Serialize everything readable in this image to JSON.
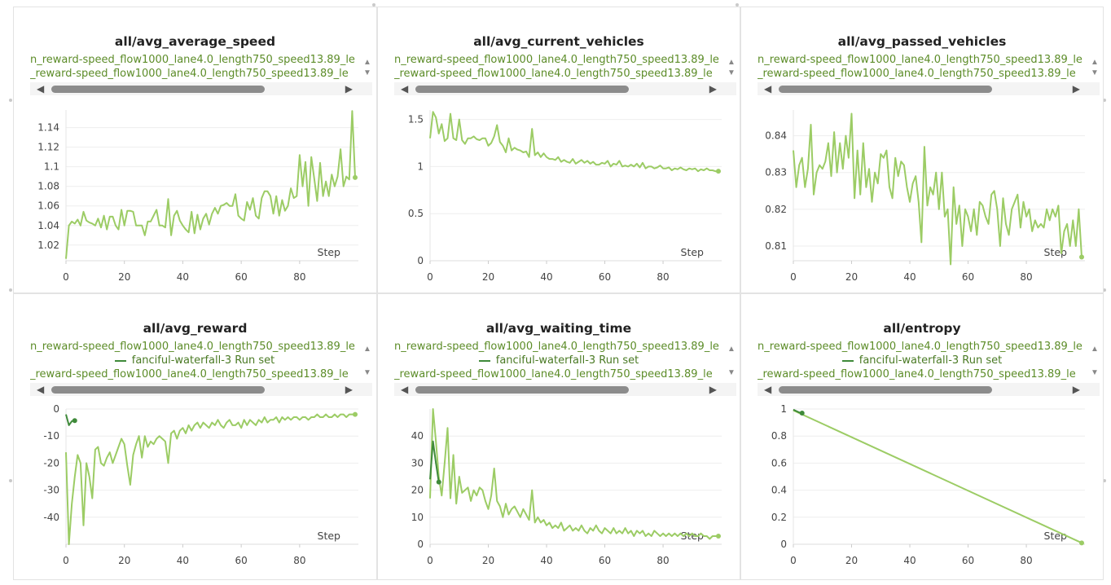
{
  "legend": {
    "run_a": "n_reward-speed_flow1000_lane4.0_length750_speed13.89_le",
    "run_b": "fanciful-waterfall-3 Run set",
    "run_c": "_reward-speed_flow1000_lane4.0_length750_speed13.89_le"
  },
  "icons": {
    "up": "▲",
    "down": "▼",
    "left": "◀",
    "right": "▶"
  },
  "colors": {
    "series_main": "#9ccc65",
    "series_secondary": "#3f8a3a",
    "legend_text": "#5c8c28"
  },
  "chart_data": [
    {
      "type": "line",
      "title": "all/avg_average_speed",
      "xlabel": "Step",
      "xlim": [
        0,
        99
      ],
      "ylim": [
        1.004,
        1.158
      ],
      "xticks": [
        0,
        20,
        40,
        60,
        80
      ],
      "yticks": [
        1.02,
        1.04,
        1.06,
        1.08,
        1.1,
        1.12,
        1.14
      ],
      "yticklabels": [
        "1.02",
        "1.04",
        "1.06",
        "1.08",
        "1.1",
        "1.12",
        "1.14"
      ],
      "show_run_b": false,
      "series": [
        {
          "values": [
            1.006,
            1.04,
            1.044,
            1.042,
            1.046,
            1.04,
            1.054,
            1.045,
            1.043,
            1.042,
            1.04,
            1.047,
            1.038,
            1.05,
            1.036,
            1.049,
            1.049,
            1.04,
            1.036,
            1.056,
            1.04,
            1.055,
            1.055,
            1.054,
            1.04,
            1.04,
            1.04,
            1.03,
            1.044,
            1.044,
            1.05,
            1.056,
            1.04,
            1.04,
            1.038,
            1.067,
            1.03,
            1.05,
            1.055,
            1.045,
            1.04,
            1.036,
            1.033,
            1.054,
            1.032,
            1.051,
            1.036,
            1.047,
            1.052,
            1.041,
            1.052,
            1.058,
            1.052,
            1.06,
            1.061,
            1.063,
            1.06,
            1.06,
            1.072,
            1.05,
            1.047,
            1.045,
            1.064,
            1.056,
            1.068,
            1.05,
            1.047,
            1.068,
            1.075,
            1.075,
            1.07,
            1.052,
            1.07,
            1.05,
            1.066,
            1.055,
            1.06,
            1.078,
            1.068,
            1.07,
            1.112,
            1.08,
            1.105,
            1.06,
            1.11,
            1.088,
            1.065,
            1.104,
            1.07,
            1.085,
            1.07,
            1.092,
            1.08,
            1.09,
            1.118,
            1.08,
            1.09,
            1.087,
            1.157,
            1.089
          ],
          "end_marker": true
        }
      ]
    },
    {
      "type": "line",
      "title": "all/avg_current_vehicles",
      "xlabel": "Step",
      "xlim": [
        0,
        99
      ],
      "ylim": [
        0,
        1.6
      ],
      "xticks": [
        0,
        20,
        40,
        60,
        80
      ],
      "yticks": [
        0,
        0.5,
        1,
        1.5
      ],
      "yticklabels": [
        "0",
        "0.5",
        "1",
        "1.5"
      ],
      "show_run_b": false,
      "series": [
        {
          "values": [
            1.3,
            1.58,
            1.52,
            1.35,
            1.45,
            1.27,
            1.3,
            1.56,
            1.3,
            1.28,
            1.5,
            1.28,
            1.24,
            1.3,
            1.3,
            1.32,
            1.29,
            1.28,
            1.3,
            1.3,
            1.22,
            1.25,
            1.32,
            1.44,
            1.26,
            1.22,
            1.15,
            1.3,
            1.17,
            1.2,
            1.18,
            1.17,
            1.15,
            1.16,
            1.1,
            1.4,
            1.12,
            1.15,
            1.1,
            1.14,
            1.1,
            1.08,
            1.08,
            1.07,
            1.1,
            1.05,
            1.07,
            1.05,
            1.04,
            1.08,
            1.03,
            1.05,
            1.07,
            1.04,
            1.06,
            1.03,
            1.05,
            1.02,
            1.02,
            1.04,
            1.03,
            1.06,
            1.0,
            1.03,
            1.02,
            1.06,
            1.0,
            1.01,
            1.0,
            1.02,
            1.0,
            1.03,
            0.99,
            1.04,
            0.98,
            1.0,
            1.0,
            0.98,
            0.99,
            1.01,
            0.98,
            0.98,
            0.99,
            0.96,
            0.98,
            0.97,
            0.99,
            0.97,
            0.96,
            0.98,
            0.97,
            0.98,
            0.95,
            0.97,
            0.96,
            0.98,
            0.96,
            0.96,
            0.95,
            0.95
          ],
          "end_marker": true
        }
      ]
    },
    {
      "type": "line",
      "title": "all/avg_passed_vehicles",
      "xlabel": "Step",
      "xlim": [
        0,
        99
      ],
      "ylim": [
        0.806,
        0.847
      ],
      "xticks": [
        0,
        20,
        40,
        60,
        80
      ],
      "yticks": [
        0.81,
        0.82,
        0.83,
        0.84
      ],
      "yticklabels": [
        "0.81",
        "0.82",
        "0.83",
        "0.84"
      ],
      "show_run_b": false,
      "series": [
        {
          "values": [
            0.836,
            0.826,
            0.832,
            0.834,
            0.826,
            0.831,
            0.843,
            0.824,
            0.83,
            0.832,
            0.831,
            0.833,
            0.838,
            0.829,
            0.841,
            0.83,
            0.838,
            0.831,
            0.84,
            0.834,
            0.846,
            0.823,
            0.836,
            0.824,
            0.838,
            0.826,
            0.831,
            0.822,
            0.83,
            0.827,
            0.835,
            0.834,
            0.836,
            0.826,
            0.823,
            0.834,
            0.829,
            0.833,
            0.832,
            0.826,
            0.822,
            0.827,
            0.829,
            0.822,
            0.811,
            0.837,
            0.821,
            0.826,
            0.824,
            0.83,
            0.82,
            0.83,
            0.818,
            0.82,
            0.805,
            0.826,
            0.816,
            0.821,
            0.81,
            0.82,
            0.818,
            0.814,
            0.82,
            0.813,
            0.822,
            0.821,
            0.818,
            0.816,
            0.824,
            0.825,
            0.82,
            0.81,
            0.823,
            0.816,
            0.813,
            0.82,
            0.822,
            0.824,
            0.815,
            0.822,
            0.818,
            0.82,
            0.814,
            0.817,
            0.815,
            0.816,
            0.815,
            0.82,
            0.817,
            0.82,
            0.818,
            0.821,
            0.808,
            0.814,
            0.816,
            0.81,
            0.817,
            0.81,
            0.82,
            0.807
          ],
          "end_marker": true
        }
      ]
    },
    {
      "type": "line",
      "title": "all/avg_reward",
      "xlabel": "Step",
      "xlim": [
        0,
        99
      ],
      "ylim": [
        -50,
        0
      ],
      "xticks": [
        0,
        20,
        40,
        60,
        80
      ],
      "yticks": [
        0,
        -10,
        -20,
        -30,
        -40
      ],
      "yticklabels": [
        "0",
        "-10",
        "-20",
        "-30",
        "-40"
      ],
      "show_run_b": true,
      "series": [
        {
          "values": [
            -16,
            -50,
            -35,
            -25,
            -17,
            -20,
            -43,
            -20,
            -25,
            -33,
            -15,
            -14,
            -20,
            -21,
            -18,
            -16,
            -20,
            -17,
            -14,
            -11,
            -13,
            -21,
            -28,
            -17,
            -13,
            -10,
            -18,
            -10,
            -14,
            -12,
            -13,
            -11,
            -10,
            -11,
            -12,
            -20,
            -9,
            -8,
            -11,
            -8,
            -7,
            -9,
            -6,
            -8,
            -6,
            -5,
            -7,
            -5,
            -6,
            -7,
            -5,
            -6,
            -4,
            -6,
            -7,
            -5,
            -4,
            -6,
            -6,
            -5,
            -7,
            -4,
            -6,
            -4,
            -5,
            -6,
            -4,
            -5,
            -3,
            -5,
            -4,
            -4,
            -3,
            -5,
            -3,
            -4,
            -3,
            -4,
            -3,
            -3,
            -4,
            -3,
            -3,
            -4,
            -3,
            -3,
            -2,
            -3,
            -3,
            -2,
            -3,
            -3,
            -2,
            -3,
            -2,
            -2,
            -3,
            -2,
            -2,
            -2
          ],
          "end_marker": true
        },
        {
          "values": [
            -2,
            -6,
            -4.5,
            -4.3
          ],
          "secondary": true,
          "end_marker": true
        }
      ]
    },
    {
      "type": "line",
      "title": "all/avg_waiting_time",
      "xlabel": "Step",
      "xlim": [
        0,
        99
      ],
      "ylim": [
        0,
        50
      ],
      "xticks": [
        0,
        20,
        40,
        60,
        80
      ],
      "yticks": [
        0,
        10,
        20,
        30,
        40
      ],
      "yticklabels": [
        "0",
        "10",
        "20",
        "30",
        "40"
      ],
      "show_run_b": true,
      "series": [
        {
          "values": [
            17,
            50,
            38,
            25,
            18,
            30,
            43,
            17,
            33,
            15,
            25,
            19,
            20,
            21,
            16,
            20,
            18,
            21,
            20,
            16,
            13,
            18,
            28,
            16,
            14,
            10,
            15,
            11,
            13,
            14,
            12,
            10,
            13,
            11,
            9,
            20,
            8,
            10,
            8,
            9,
            7,
            8,
            6,
            7,
            6,
            8,
            5,
            6,
            7,
            5,
            6,
            5,
            7,
            5,
            4,
            6,
            5,
            7,
            5,
            4,
            6,
            5,
            4,
            6,
            4,
            5,
            4,
            6,
            4,
            5,
            3,
            5,
            4,
            5,
            3,
            4,
            3,
            5,
            4,
            3,
            4,
            3,
            4,
            3,
            4,
            3,
            4,
            3,
            4,
            3,
            4,
            3,
            3,
            4,
            3,
            3,
            2,
            3,
            3,
            3
          ],
          "end_marker": true
        },
        {
          "values": [
            24,
            38,
            30,
            23
          ],
          "secondary": true,
          "end_marker": true
        }
      ]
    },
    {
      "type": "line",
      "title": "all/entropy",
      "xlabel": "Step",
      "xlim": [
        0,
        99
      ],
      "ylim": [
        0,
        1
      ],
      "xticks": [
        0,
        20,
        40,
        60,
        80
      ],
      "yticks": [
        0,
        0.2,
        0.4,
        0.6,
        0.8,
        1
      ],
      "yticklabels": [
        "0",
        "0.2",
        "0.4",
        "0.6",
        "0.8",
        "1"
      ],
      "show_run_b": true,
      "series": [
        {
          "x": [
            0,
            99
          ],
          "values": [
            0.99,
            0.01
          ],
          "end_marker": true
        },
        {
          "x": [
            0,
            1,
            2,
            3
          ],
          "values": [
            0.995,
            0.985,
            0.975,
            0.97
          ],
          "secondary": true,
          "end_marker": true
        }
      ]
    }
  ]
}
